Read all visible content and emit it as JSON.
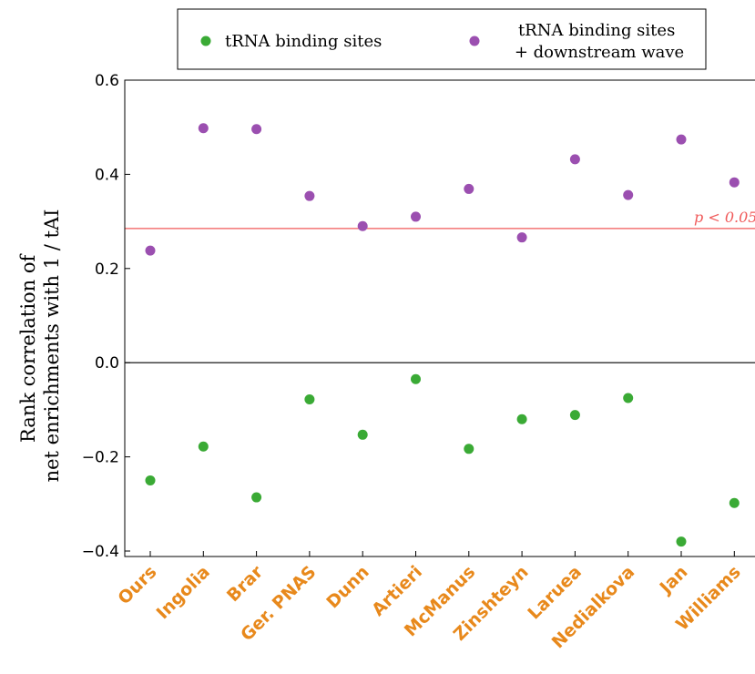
{
  "chart_data": {
    "type": "scatter",
    "title": "",
    "xlabel": "",
    "ylabel_lines": [
      "Rank correlation of",
      "net enrichments with 1 / tAI"
    ],
    "ylim": [
      -0.41,
      0.6
    ],
    "yticks": [
      -0.4,
      -0.2,
      0.0,
      0.2,
      0.4,
      0.6
    ],
    "ytick_labels": [
      "−0.4",
      "−0.2",
      "0.0",
      "0.2",
      "0.4",
      "0.6"
    ],
    "categories": [
      "Ours",
      "Ingolia",
      "Brar",
      "Ger. PNAS",
      "Dunn",
      "Artieri",
      "McManus",
      "Zinshteyn",
      "Laruea",
      "Nedialkova",
      "Jan",
      "Williams"
    ],
    "category_color": "#e8891c",
    "series": [
      {
        "name": "tRNA binding sites",
        "color": "#3aaa35",
        "values": [
          -0.25,
          -0.178,
          -0.286,
          -0.078,
          -0.153,
          -0.035,
          -0.183,
          -0.12,
          -0.111,
          -0.075,
          -0.38,
          -0.298
        ]
      },
      {
        "name_lines": [
          "tRNA binding sites",
          "+ downstream wave"
        ],
        "color": "#9b4fb0",
        "values": [
          0.238,
          0.498,
          0.496,
          0.354,
          0.29,
          0.31,
          0.369,
          0.266,
          0.432,
          0.356,
          0.474,
          0.383
        ]
      }
    ],
    "reference_lines": [
      {
        "y": 0.0,
        "color": "#000000"
      },
      {
        "y": 0.285,
        "color": "#f05a5a",
        "label": "p < 0.05"
      }
    ],
    "legend_position": "top",
    "grid": false
  }
}
